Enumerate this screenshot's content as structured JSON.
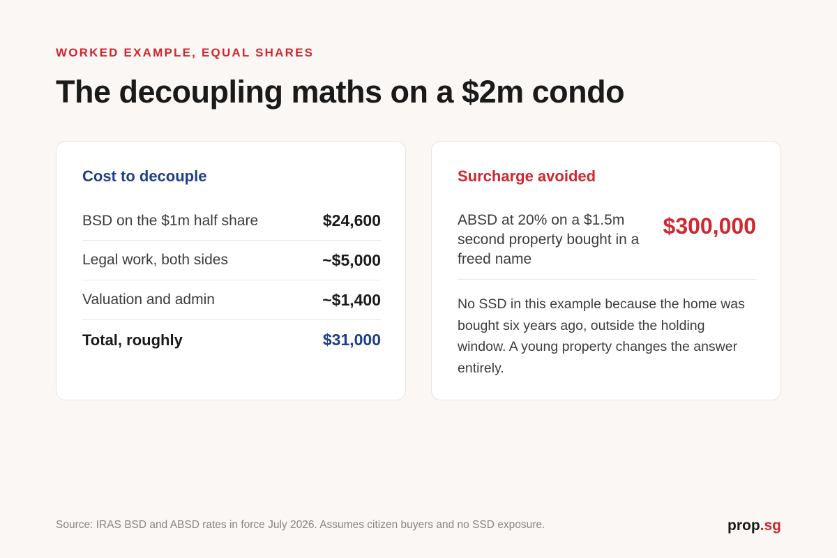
{
  "header": {
    "eyebrow": "WORKED EXAMPLE, EQUAL SHARES",
    "title": "The decoupling maths on a $2m condo"
  },
  "cost_card": {
    "heading": "Cost to decouple",
    "rows": [
      {
        "label": "BSD on the $1m half share",
        "value": "$24,600"
      },
      {
        "label": "Legal work, both sides",
        "value": "~$5,000"
      },
      {
        "label": "Valuation and admin",
        "value": "~$1,400"
      }
    ],
    "total": {
      "label": "Total, roughly",
      "value": "$31,000"
    }
  },
  "surcharge_card": {
    "heading": "Surcharge avoided",
    "label": "ABSD at 20% on a $1.5m second property bought in a freed name",
    "value": "$300,000",
    "note": "No SSD in this example because the home was bought six years ago, outside the holding window. A young property changes the answer entirely."
  },
  "footer": {
    "source": "Source: IRAS BSD and ABSD rates in force July 2026. Assumes citizen buyers and no SSD exposure.",
    "brand_name": "prop",
    "brand_tld": ".sg"
  },
  "colors": {
    "accent_red": "#d0262f",
    "accent_blue": "#1d3f8a",
    "background": "#faf7f4"
  }
}
